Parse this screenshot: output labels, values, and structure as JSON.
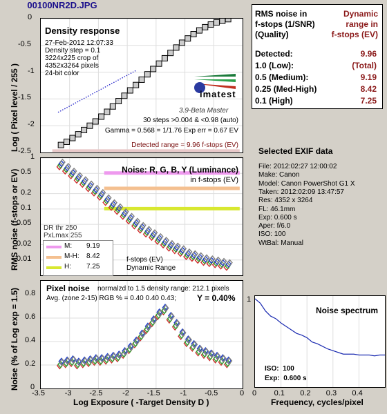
{
  "file_title": "00100NR2D.JPG",
  "density_panel": {
    "title": "Density response",
    "info_lines": [
      "27-Feb-2012 12:07:33",
      "Density step = 0.1",
      "3224x225 crop of",
      "4352x3264 pixels",
      "24-bit color"
    ],
    "logo_text": "imatest",
    "version": "3.9-Beta  Master",
    "steps_line": "30 steps >0.004 & <0.98 (auto)",
    "gamma_line": "Gamma = 0.568 = 1/1.76  Exp err = 0.67 EV",
    "detected_range": "Detected range = 9.96 f-stops (EV)",
    "ylabel": "Log ( Pixel level / 255 )",
    "yticks": [
      "0",
      "-0.5",
      "-1",
      "-1.5",
      "-2",
      "-2.5"
    ]
  },
  "noise_fstop_panel": {
    "title": "Noise: R, G, B, Y (Luminance)",
    "subtitle": "in f-stops (EV)",
    "ylabel": "RMS noise (f-stops or EV)",
    "yticks": [
      "1",
      "0.5",
      "0.2",
      "0.1",
      "0.05",
      "0.02",
      "0.01"
    ],
    "dr_note": "DR thr 250",
    "dr_note2": "PxLmax 255",
    "legend": [
      {
        "label": "M:",
        "value": "9.19",
        "color": "#ee99ee"
      },
      {
        "label": "M-H:",
        "value": "8.42",
        "color": "#f4c090"
      },
      {
        "label": "H:",
        "value": "7.25",
        "color": "#d8e830"
      }
    ],
    "caption1": "f-stops (EV)",
    "caption2": "Dynamic Range"
  },
  "pixel_noise_panel": {
    "title": "Pixel noise",
    "normalized": "normalzd to 1.5 density range: 212.1 pixels",
    "avg_line": "Avg. (zone 2-15) RGB % = 0.40  0.40  0.43;",
    "y_value": "Y = 0.40%",
    "ylabel": "Noise (% of Log exp = 1.5)",
    "xlabel": "Log Exposure ( -Target Density D )",
    "yticks": [
      "0.8",
      "0.6",
      "0.4",
      "0.2",
      "0"
    ],
    "xticks": [
      "-3.5",
      "-3",
      "-2.5",
      "-2",
      "-1.5",
      "-1",
      "-0.5",
      "0"
    ]
  },
  "rms_table": {
    "header_left": [
      "RMS noise in",
      "f-stops (1/SNR)",
      "(Quality)"
    ],
    "header_right": [
      "Dynamic",
      "range in",
      "f-stops (EV)"
    ],
    "rows": [
      {
        "label": "Detected:",
        "value": "9.96"
      },
      {
        "label": "1.0  (Low):",
        "value": "(Total)"
      },
      {
        "label": "0.5  (Medium):",
        "value": "9.19"
      },
      {
        "label": "0.25 (Med-High)",
        "value": "8.42"
      },
      {
        "label": "0.1  (High)",
        "value": "7.25"
      }
    ]
  },
  "exif": {
    "title": "Selected EXIF data",
    "lines": [
      "File:  2012:02:27 12:00:02",
      "Make:  Canon",
      "Model: Canon PowerShot G1 X",
      "Taken:  2012:02:09 13:47:57",
      "Res:    4352 x 3264",
      "FL:  46.1mm",
      "Exp:   0.600 s",
      "Aper:  f/6.0",
      "ISO:   100",
      "WtBal: Manual"
    ]
  },
  "spectrum_panel": {
    "title": "Noise spectrum",
    "iso_label": "ISO:",
    "iso_value": "100",
    "exp_label": "Exp:",
    "exp_value": "0.600 s",
    "xlabel": "Frequency, cycles/pixel",
    "xticks": [
      "0",
      "0.1",
      "0.2",
      "0.3",
      "0.4"
    ],
    "ytick": "1"
  },
  "chart_data": [
    {
      "type": "scatter",
      "title": "Density response",
      "xlabel": "",
      "ylabel": "Log ( Pixel level / 255 )",
      "xlim": [
        -3.5,
        0
      ],
      "ylim": [
        -2.5,
        0
      ],
      "series": [
        {
          "name": "",
          "x": [
            -3.15,
            -3.05,
            -2.95,
            -2.85,
            -2.75,
            -2.65,
            -2.55,
            -2.45,
            -2.35,
            -2.25,
            -2.15,
            -2.05,
            -1.95,
            -1.85,
            -1.75,
            -1.65,
            -1.55,
            -1.45,
            -1.35,
            -1.25,
            -1.15,
            -1.05,
            -0.95,
            -0.85,
            -0.75,
            -0.65,
            -0.55,
            -0.45,
            -0.35,
            -0.25
          ],
          "y": [
            -2.36,
            -2.3,
            -2.23,
            -2.16,
            -2.08,
            -2.0,
            -1.92,
            -1.83,
            -1.74,
            -1.64,
            -1.54,
            -1.44,
            -1.34,
            -1.24,
            -1.14,
            -1.04,
            -0.94,
            -0.84,
            -0.74,
            -0.64,
            -0.54,
            -0.45,
            -0.37,
            -0.29,
            -0.22,
            -0.16,
            -0.11,
            -0.07,
            -0.04,
            -0.01
          ]
        }
      ]
    },
    {
      "type": "scatter",
      "title": "Noise: R, G, B, Y (Luminance)",
      "ylabel": "RMS noise (f-stops or EV)",
      "xlim": [
        -3.5,
        0
      ],
      "ylim_log": [
        0.005,
        1
      ],
      "categories": [
        "R",
        "G",
        "B",
        "Y"
      ],
      "series": [
        {
          "name": "Y",
          "x": [
            -3.15,
            -3.05,
            -2.95,
            -2.85,
            -2.75,
            -2.65,
            -2.55,
            -2.45,
            -2.35,
            -2.25,
            -2.15,
            -2.05,
            -1.95,
            -1.85,
            -1.75,
            -1.65,
            -1.55,
            -1.45,
            -1.35,
            -1.25,
            -1.15,
            -1.05,
            -0.95,
            -0.85,
            -0.75,
            -0.65,
            -0.55,
            -0.45,
            -0.35,
            -0.25
          ],
          "y": [
            0.75,
            0.62,
            0.5,
            0.41,
            0.34,
            0.28,
            0.23,
            0.19,
            0.15,
            0.12,
            0.1,
            0.08,
            0.065,
            0.052,
            0.043,
            0.036,
            0.031,
            0.026,
            0.022,
            0.019,
            0.017,
            0.015,
            0.013,
            0.012,
            0.011,
            0.01,
            0.0095,
            0.009,
            0.0085,
            0.008
          ]
        }
      ],
      "hlines": [
        {
          "label": "M",
          "y": 0.5
        },
        {
          "label": "M-H",
          "y": 0.25
        },
        {
          "label": "H",
          "y": 0.1
        }
      ]
    },
    {
      "type": "scatter",
      "title": "Pixel noise",
      "xlabel": "Log Exposure ( -Target Density D )",
      "ylabel": "Noise (% of Log exp = 1.5)",
      "xlim": [
        -3.5,
        0
      ],
      "ylim": [
        0,
        0.8
      ],
      "series": [
        {
          "name": "Y",
          "x": [
            -3.15,
            -3.05,
            -2.95,
            -2.85,
            -2.75,
            -2.65,
            -2.55,
            -2.45,
            -2.35,
            -2.25,
            -2.15,
            -2.05,
            -1.95,
            -1.85,
            -1.75,
            -1.65,
            -1.55,
            -1.45,
            -1.35,
            -1.25,
            -1.15,
            -1.05,
            -0.95,
            -0.85,
            -0.75,
            -0.65,
            -0.55,
            -0.45,
            -0.35,
            -0.25
          ],
          "y": [
            0.21,
            0.22,
            0.23,
            0.21,
            0.22,
            0.23,
            0.24,
            0.24,
            0.25,
            0.26,
            0.27,
            0.3,
            0.34,
            0.39,
            0.45,
            0.51,
            0.57,
            0.63,
            0.67,
            0.6,
            0.54,
            0.46,
            0.4,
            0.36,
            0.32,
            0.3,
            0.28,
            0.26,
            0.24,
            0.22
          ]
        }
      ]
    },
    {
      "type": "line",
      "title": "Noise spectrum",
      "xlabel": "Frequency, cycles/pixel",
      "xlim": [
        0,
        0.5
      ],
      "series": [
        {
          "name": "",
          "x": [
            0,
            0.02,
            0.04,
            0.06,
            0.08,
            0.1,
            0.12,
            0.14,
            0.16,
            0.18,
            0.2,
            0.22,
            0.24,
            0.26,
            0.28,
            0.3,
            0.32,
            0.34,
            0.36,
            0.38,
            0.4,
            0.42,
            0.44,
            0.46,
            0.48,
            0.5
          ],
          "y": [
            1.0,
            0.95,
            0.86,
            0.8,
            0.77,
            0.72,
            0.68,
            0.64,
            0.6,
            0.58,
            0.55,
            0.5,
            0.48,
            0.45,
            0.42,
            0.4,
            0.38,
            0.36,
            0.36,
            0.36,
            0.35,
            0.35,
            0.35,
            0.34,
            0.35,
            0.35
          ]
        }
      ]
    }
  ]
}
